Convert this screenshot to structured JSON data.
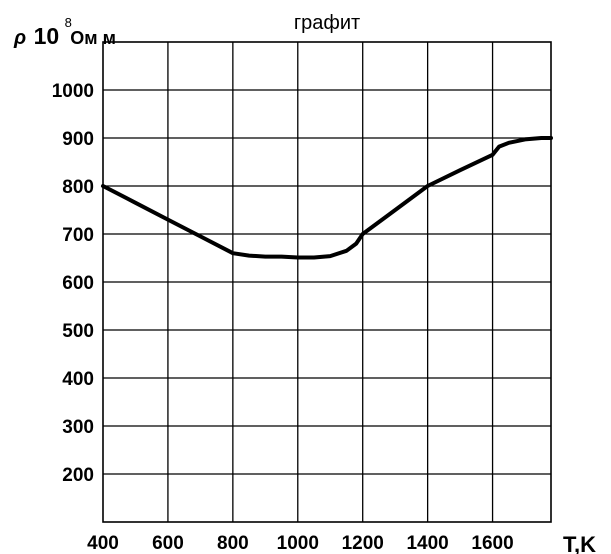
{
  "chart_data": {
    "type": "line",
    "title": "графит",
    "ylabel": {
      "symbol": "ρ",
      "multiplier": "10",
      "exponent": "8",
      "unit": "Ом м"
    },
    "xlabel": "T,K",
    "x_ticks": [
      "400",
      "600",
      "800",
      "1000",
      "1200",
      "1400",
      "1600"
    ],
    "y_ticks": [
      "200",
      "300",
      "400",
      "500",
      "600",
      "700",
      "800",
      "900",
      "1000"
    ],
    "xlim": [
      400,
      1780
    ],
    "ylim": [
      100,
      1100
    ],
    "grid": true,
    "series": [
      {
        "x": [
          400,
          500,
          600,
          700,
          800,
          850,
          900,
          950,
          1000,
          1050,
          1100,
          1150,
          1180,
          1200,
          1300,
          1400,
          1500,
          1600,
          1620,
          1650,
          1700,
          1750,
          1780
        ],
        "y": [
          800,
          765,
          730,
          695,
          660,
          655,
          653,
          653,
          651,
          651,
          654,
          665,
          680,
          700,
          750,
          800,
          833,
          865,
          882,
          890,
          897,
          900,
          900
        ]
      }
    ]
  }
}
